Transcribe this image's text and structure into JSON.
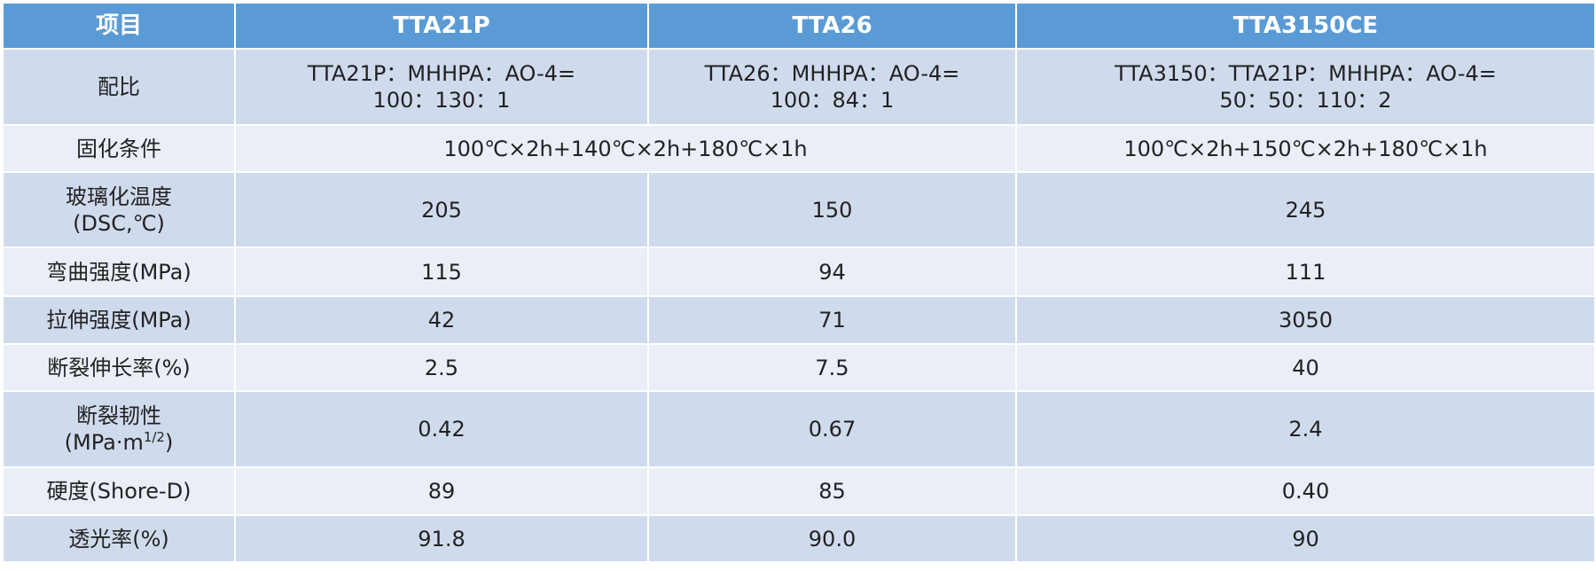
{
  "table": {
    "headers": [
      "项目",
      "TTA21P",
      "TTA26",
      "TTA3150CE"
    ],
    "rows": [
      [
        [
          "配比"
        ],
        [
          "TTA21P：MHHPA：AO-4=",
          "100：130：1"
        ],
        [
          "TTA26：MHHPA：AO-4=",
          "100：84：1"
        ],
        [
          "TTA3150：TTA21P：MHHPA：AO-4=",
          "50：50：110：2"
        ]
      ],
      [
        [
          "固化条件"
        ],
        [
          "100℃×2h+140℃×2h+180℃×1h"
        ],
        [
          "100℃×2h+150℃×2h+180℃×1h"
        ]
      ],
      [
        [
          "玻璃化温度",
          "(DSC,℃)"
        ],
        [
          "205"
        ],
        [
          "150"
        ],
        [
          "245"
        ]
      ],
      [
        [
          "弯曲强度(MPa)"
        ],
        [
          "115"
        ],
        [
          "94"
        ],
        [
          "111"
        ]
      ],
      [
        [
          "拉伸强度(MPa)"
        ],
        [
          "42"
        ],
        [
          "71"
        ],
        [
          "3050"
        ]
      ],
      [
        [
          "断裂伸长率(%)"
        ],
        [
          "2.5"
        ],
        [
          "7.5"
        ],
        [
          "40"
        ]
      ],
      [
        [
          "断裂韧性",
          "(MPa·m",
          "1/2",
          ")"
        ],
        [
          "0.42"
        ],
        [
          "0.67"
        ],
        [
          "2.4"
        ]
      ],
      [
        [
          "硬度(Shore-D)"
        ],
        [
          "89"
        ],
        [
          "85"
        ],
        [
          "0.40"
        ]
      ],
      [
        [
          "透光率(%)"
        ],
        [
          "91.8"
        ],
        [
          "90.0"
        ],
        [
          "90"
        ]
      ]
    ]
  }
}
